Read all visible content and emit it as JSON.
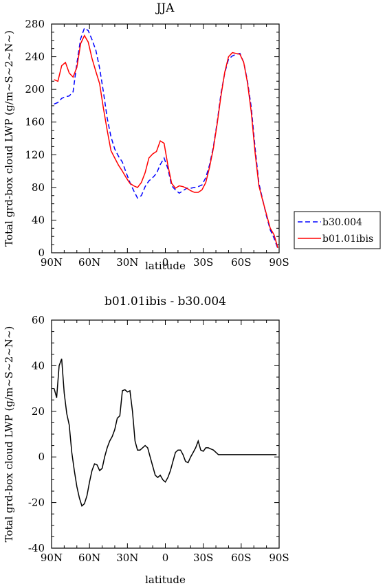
{
  "chart_data": [
    {
      "type": "line",
      "title": "JJA",
      "xlabel": "latitude",
      "ylabel": "Total grd-box cloud LWP (g/m~S~2~N~)",
      "xlim": [
        90,
        -90
      ],
      "ylim": [
        0,
        280
      ],
      "xtick_labels": [
        "90N",
        "60N",
        "30N",
        "0",
        "30S",
        "60S",
        "90S"
      ],
      "ytick_labels": [
        "0",
        "40",
        "80",
        "120",
        "160",
        "200",
        "240",
        "280"
      ],
      "legend_position": "right",
      "series": [
        {
          "name": "b30.004",
          "color": "#0000ff",
          "style": "dashed",
          "x": [
            88,
            85,
            82,
            79,
            76,
            73,
            70,
            67,
            64,
            61,
            58,
            55,
            52,
            49,
            46,
            43,
            40,
            37,
            34,
            31,
            28,
            25,
            22,
            19,
            16,
            13,
            10,
            7,
            4,
            1,
            -2,
            -5,
            -8,
            -11,
            -14,
            -17,
            -20,
            -23,
            -26,
            -29,
            -32,
            -35,
            -38,
            -41,
            -44,
            -47,
            -50,
            -53,
            -56,
            -59,
            -62,
            -65,
            -68,
            -71,
            -74,
            -77,
            -80,
            -83,
            -86,
            -89
          ],
          "values": [
            182,
            184,
            189,
            191,
            192,
            197,
            232,
            262,
            275,
            272,
            261,
            248,
            226,
            197,
            165,
            142,
            127,
            118,
            111,
            98,
            86,
            76,
            67,
            70,
            81,
            88,
            92,
            97,
            108,
            116,
            103,
            82,
            77,
            73,
            76,
            79,
            79,
            80,
            81,
            83,
            92,
            108,
            130,
            160,
            195,
            220,
            237,
            241,
            243,
            244,
            233,
            210,
            178,
            128,
            85,
            65,
            45,
            28,
            18,
            5
          ]
        },
        {
          "name": "b01.01ibis",
          "color": "#ff0000",
          "style": "solid",
          "x": [
            88,
            85,
            82,
            79,
            76,
            73,
            70,
            67,
            64,
            61,
            58,
            55,
            52,
            49,
            46,
            43,
            40,
            37,
            34,
            31,
            28,
            25,
            22,
            19,
            16,
            13,
            10,
            7,
            4,
            1,
            -2,
            -5,
            -8,
            -11,
            -14,
            -17,
            -20,
            -23,
            -26,
            -29,
            -32,
            -35,
            -38,
            -41,
            -44,
            -47,
            -50,
            -53,
            -56,
            -59,
            -62,
            -65,
            -68,
            -71,
            -74,
            -77,
            -80,
            -83,
            -86,
            -89
          ],
          "values": [
            212,
            210,
            229,
            233,
            220,
            215,
            227,
            256,
            266,
            258,
            238,
            222,
            207,
            177,
            150,
            125,
            116,
            107,
            100,
            92,
            85,
            82,
            80,
            86,
            98,
            116,
            121,
            124,
            137,
            134,
            107,
            85,
            79,
            82,
            81,
            79,
            76,
            74,
            74,
            77,
            86,
            105,
            128,
            158,
            192,
            221,
            240,
            245,
            244,
            243,
            233,
            208,
            172,
            122,
            82,
            64,
            47,
            30,
            22,
            6
          ]
        }
      ]
    },
    {
      "type": "line",
      "title": "b01.01ibis - b30.004",
      "xlabel": "latitude",
      "ylabel": "Total grd-box cloud LWP (g/m~S~2~N~)",
      "xlim": [
        90,
        -90
      ],
      "ylim": [
        -40,
        60
      ],
      "xtick_labels": [
        "90N",
        "60N",
        "30N",
        "0",
        "30S",
        "60S",
        "90S"
      ],
      "ytick_labels": [
        "-40",
        "-20",
        "0",
        "20",
        "40",
        "60"
      ],
      "series": [
        {
          "color": "#000000",
          "style": "solid",
          "x": [
            88,
            86,
            84,
            82,
            80,
            78,
            76,
            74,
            72,
            70,
            68,
            66,
            64,
            62,
            60,
            58,
            56,
            54,
            52,
            50,
            48,
            46,
            44,
            42,
            40,
            38,
            36,
            34,
            32,
            30,
            28,
            26,
            24,
            22,
            20,
            18,
            16,
            14,
            12,
            10,
            8,
            6,
            4,
            2,
            0,
            -2,
            -4,
            -6,
            -8,
            -10,
            -12,
            -14,
            -16,
            -18,
            -20,
            -22,
            -24,
            -26,
            -28,
            -30,
            -32,
            -34,
            -36,
            -38,
            -40,
            -42,
            -44,
            -46,
            -48,
            -50,
            -52,
            -54,
            -56,
            -58,
            -60,
            -62,
            -64,
            -66,
            -68,
            -70,
            -72,
            -74,
            -76,
            -78,
            -80,
            -82,
            -84,
            -86,
            -88
          ],
          "values": [
            30,
            26,
            40,
            43,
            28,
            19,
            14,
            2,
            -6,
            -13,
            -18,
            -21.5,
            -20.5,
            -17,
            -11,
            -6,
            -3,
            -3.5,
            -6,
            -5,
            0,
            4,
            7,
            9,
            12,
            17,
            18,
            29,
            29.5,
            28.5,
            29,
            20,
            7,
            3,
            3,
            4,
            5,
            4,
            0,
            -4,
            -8,
            -9,
            -8,
            -10,
            -11,
            -9,
            -6,
            -2,
            2,
            3,
            3,
            1,
            -2,
            -2.5,
            0,
            2,
            4,
            7,
            3,
            2.5,
            4,
            4,
            3.5,
            3,
            2,
            1,
            1,
            1,
            1,
            1,
            1,
            1,
            1,
            1,
            1,
            1,
            1,
            1,
            1,
            1,
            1,
            1,
            1,
            1,
            1,
            1,
            1,
            1,
            1
          ]
        }
      ]
    }
  ]
}
